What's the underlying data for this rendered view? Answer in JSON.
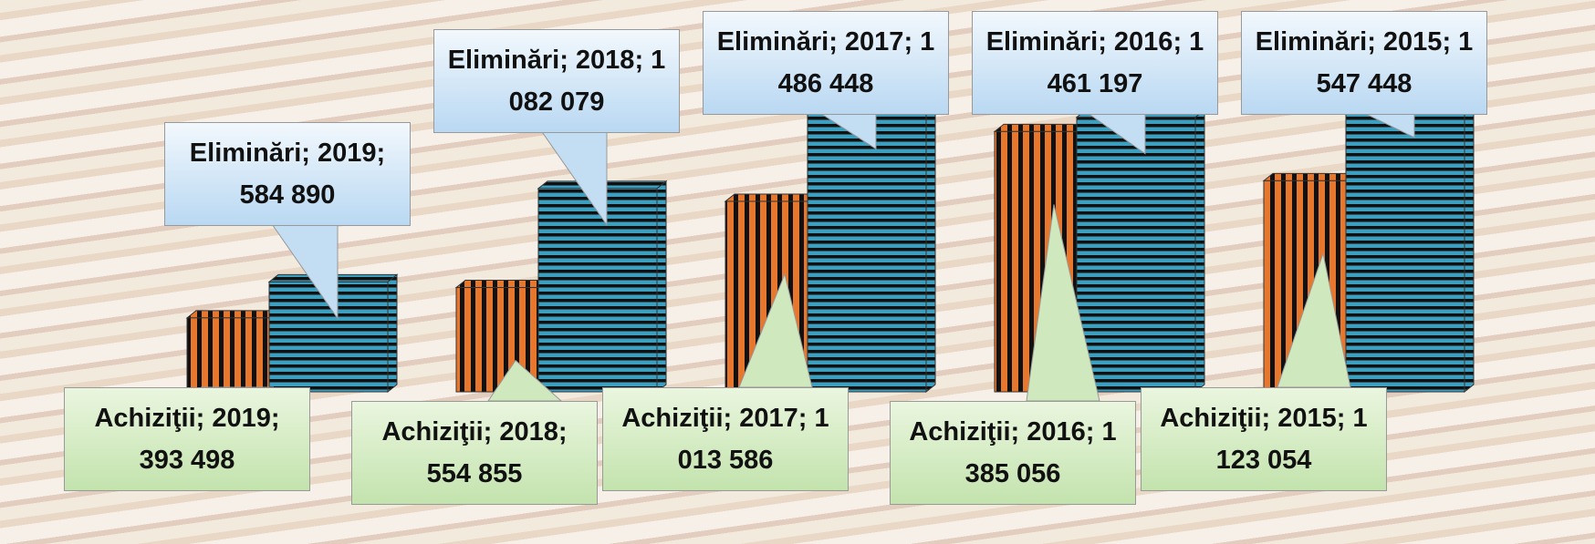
{
  "chart_data": {
    "type": "bar3d",
    "categories": [
      "2019",
      "2018",
      "2017",
      "2016",
      "2015"
    ],
    "label_separator": "; ",
    "series": [
      {
        "name": "Achiziţii",
        "color": "#e8772e",
        "values": [
          393498,
          554855,
          1013586,
          1385056,
          1123054
        ],
        "value_labels": [
          "393 498",
          "554 855",
          "1 013 586",
          "1 385 056",
          "1 123 054"
        ]
      },
      {
        "name": "Eliminări",
        "color": "#3c9fc0",
        "values": [
          584890,
          1082079,
          1486448,
          1461197,
          1547448
        ],
        "value_labels": [
          "584 890",
          "1 082 079",
          "1 486 448",
          "1 461 197",
          "1 547 448"
        ]
      }
    ],
    "ylim": [
      0,
      1600000
    ]
  }
}
